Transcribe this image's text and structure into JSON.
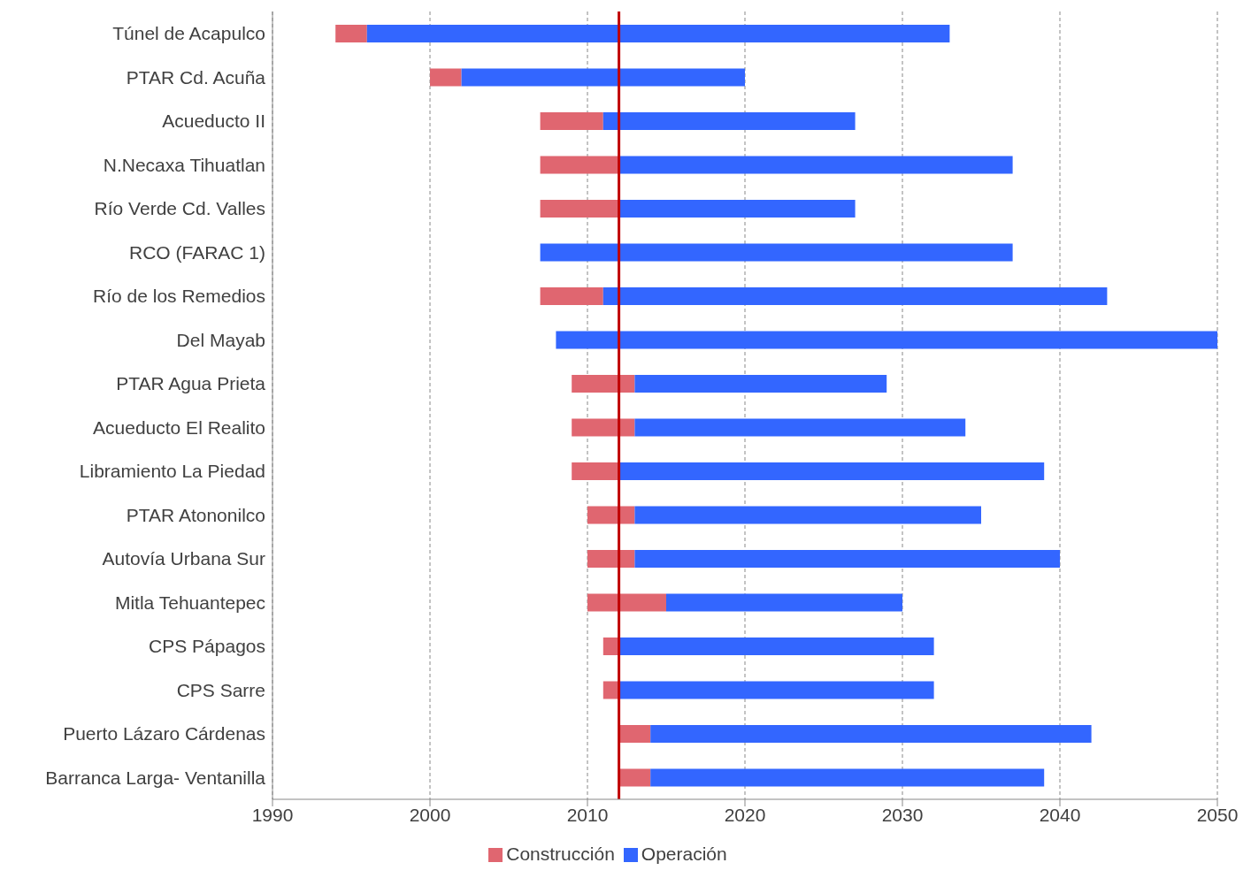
{
  "chart_data": {
    "type": "bar",
    "orientation": "horizontal",
    "categories": [
      "Túnel de Acapulco",
      "PTAR Cd. Acuña",
      "Acueducto II",
      "N.Necaxa Tihuatlan",
      "Río Verde Cd. Valles",
      "RCO (FARAC 1)",
      "Río de los Remedios",
      "Del Mayab",
      "PTAR Agua Prieta",
      "Acueducto El Realito",
      "Libramiento La Piedad",
      "PTAR Atononilco",
      "Autovía Urbana Sur",
      "Mitla Tehuantepec",
      "CPS Pápagos",
      "CPS Sarre",
      "Puerto Lázaro Cárdenas",
      "Barranca Larga- Ventanilla"
    ],
    "series": [
      {
        "name": "Construcción",
        "color": "#e06670",
        "base": [
          1994,
          2000,
          2007,
          2007,
          2007,
          null,
          2007,
          null,
          2009,
          2009,
          2009,
          2010,
          2010,
          2010,
          2011,
          2011,
          2012,
          2012
        ],
        "values": [
          2,
          2,
          4,
          5,
          5,
          null,
          4,
          null,
          4,
          4,
          3,
          3,
          3,
          5,
          1,
          1,
          2,
          2
        ]
      },
      {
        "name": "Operación",
        "color": "#3366ff",
        "base": [
          1996,
          2002,
          2011,
          2012,
          2012,
          2007,
          2011,
          2008,
          2013,
          2013,
          2012,
          2013,
          2013,
          2015,
          2012,
          2012,
          2014,
          2014
        ],
        "values": [
          37,
          18,
          16,
          25,
          15,
          30,
          32,
          42,
          16,
          21,
          27,
          22,
          27,
          15,
          20,
          20,
          28,
          25
        ]
      }
    ],
    "xlim": [
      1990,
      2050
    ],
    "xticks": [
      1990,
      2000,
      2010,
      2020,
      2030,
      2040,
      2050
    ],
    "grid": "x",
    "legend": "bottom",
    "ref_lines": [
      {
        "axis": "x",
        "value": 2012,
        "color": "#c00000"
      }
    ]
  }
}
